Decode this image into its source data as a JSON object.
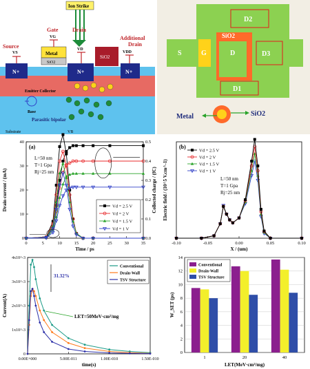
{
  "schematic": {
    "ion_strike": "Ion Strike",
    "gate_label": "Gate",
    "gate_sub": "VG",
    "drain_label": "Drain",
    "drain_sub": "VD",
    "source_label": "Source",
    "source_sub": "VS",
    "additional_drain_label": "Additional",
    "additional_drain_label2": "Drain",
    "additional_drain_sub": "VDD",
    "metal_label": "Metal",
    "sio2_gate_label": "SiO2",
    "sio2_label": "SiO2",
    "nplus_1": "N+",
    "nplus_2": "N+",
    "nplus_3": "N+",
    "emitter_collector": "Emitter Collector",
    "base_label": "Base",
    "parasitic_bipolar": "Parasitic bipolar",
    "substrate_label": "Substrate",
    "vb_label": "VB"
  },
  "layout": {
    "d2": "D2",
    "sio2": "SiO2",
    "s": "S",
    "g": "G",
    "d": "D",
    "d3": "D3",
    "d1": "D1",
    "metal_legend": "Metal",
    "sio2_legend": "SiO2",
    "colors": {
      "green": "#8cd151",
      "orange": "#ff6a2a",
      "yellow": "#ffd21a",
      "red": "#e41b1b"
    }
  },
  "chart_data": [
    {
      "type": "line",
      "panel_label": "(a)",
      "xlabel": "Time / ps",
      "ylabel": "Drain current / (mA)",
      "y2label": "Collected charge / (fC)",
      "xlim": [
        0,
        35
      ],
      "ylim": [
        0,
        40
      ],
      "y2lim": [
        0,
        0.5
      ],
      "xticks": [
        "0",
        "5",
        "10",
        "15",
        "20",
        "25",
        "30",
        "35"
      ],
      "yticks": [
        "0",
        "10",
        "20",
        "30",
        "40"
      ],
      "y2ticks": [
        "0.0",
        "0.1",
        "0.2",
        "0.3",
        "0.4",
        "0.5"
      ],
      "annotations": [
        "L=50 nm",
        "T=1 Gpa",
        "Rj=25 nm"
      ],
      "legend_position": "bottom-right",
      "colors": [
        "#000000",
        "#e8292b",
        "#2aa32a",
        "#3040c8"
      ],
      "series": [
        {
          "name": "Vd = 2.5 V",
          "current": {
            "x": [
              0,
              6,
              8,
              9,
              10,
              11,
              12,
              13,
              14,
              15,
              17,
              20,
              35
            ],
            "y": [
              0,
              0.5,
              7,
              22,
              38,
              43,
              35,
              20,
              8,
              2,
              0,
              0,
              0
            ]
          },
          "charge": {
            "x": [
              0,
              6,
              8,
              9,
              10,
              11,
              12,
              13,
              14,
              15,
              17,
              20,
              25,
              35
            ],
            "y": [
              0,
              0.003,
              0.06,
              0.17,
              0.3,
              0.4,
              0.45,
              0.47,
              0.48,
              0.48,
              0.48,
              0.48,
              0.48,
              0.48
            ]
          }
        },
        {
          "name": "Vd = 2 V",
          "current": {
            "x": [
              0,
              6,
              8,
              9,
              10,
              11,
              12,
              13,
              14,
              15,
              17,
              20,
              35
            ],
            "y": [
              0,
              0.5,
              6,
              18,
              32,
              36,
              30,
              18,
              8,
              2,
              0,
              0,
              0
            ]
          },
          "charge": {
            "x": [
              0,
              6,
              8,
              9,
              10,
              11,
              12,
              13,
              14,
              15,
              17,
              20,
              25,
              35
            ],
            "y": [
              0,
              0.003,
              0.05,
              0.14,
              0.26,
              0.34,
              0.38,
              0.39,
              0.4,
              0.4,
              0.4,
              0.4,
              0.4,
              0.4
            ]
          }
        },
        {
          "name": "Vd = 1.5 V",
          "current": {
            "x": [
              0,
              6,
              8,
              9,
              10,
              11,
              12,
              13,
              14,
              15,
              17,
              20,
              35
            ],
            "y": [
              0,
              0.4,
              5,
              15,
              27,
              31,
              25,
              15,
              7,
              2,
              0,
              0,
              0
            ]
          },
          "charge": {
            "x": [
              0,
              6,
              8,
              9,
              10,
              11,
              12,
              13,
              14,
              15,
              17,
              20,
              25,
              35
            ],
            "y": [
              0,
              0.003,
              0.04,
              0.11,
              0.21,
              0.28,
              0.32,
              0.33,
              0.335,
              0.335,
              0.335,
              0.335,
              0.335,
              0.335
            ]
          }
        },
        {
          "name": "Vd = 1 V",
          "current": {
            "x": [
              0,
              6,
              8,
              9,
              10,
              11,
              12,
              13,
              14,
              15,
              17,
              20,
              35
            ],
            "y": [
              0,
              0.3,
              4,
              12,
              22,
              27,
              22,
              12,
              5,
              1.5,
              0,
              0,
              0
            ]
          },
          "charge": {
            "x": [
              0,
              6,
              8,
              9,
              10,
              11,
              12,
              13,
              14,
              15,
              17,
              20,
              25,
              35
            ],
            "y": [
              0,
              0.002,
              0.03,
              0.09,
              0.17,
              0.22,
              0.25,
              0.26,
              0.265,
              0.265,
              0.265,
              0.265,
              0.265,
              0.265
            ]
          }
        }
      ]
    },
    {
      "type": "line",
      "panel_label": "(b)",
      "xlabel": "X / (um)",
      "ylabel": "Electric field / (10^5 V.cm^-1)",
      "xlim": [
        -0.1,
        0.1
      ],
      "ylim": [
        0,
        2.0
      ],
      "xticks": [
        "-0.10",
        "-0.05",
        "0.00",
        "0.05",
        "0.10"
      ],
      "annotations": [
        "L=50 nm",
        "T=1 Gpa",
        "Rj=25 nm"
      ],
      "legend_position": "top-left",
      "colors": [
        "#000000",
        "#e8292b",
        "#2aa32a",
        "#3040c8"
      ],
      "series": [
        {
          "name": "Vd = 2.5 V",
          "x": [
            -0.1,
            -0.06,
            -0.04,
            -0.03,
            -0.025,
            -0.02,
            -0.015,
            -0.01,
            0,
            0.01,
            0.02,
            0.025,
            0.03,
            0.035,
            0.04,
            0.05,
            0.1
          ],
          "y": [
            0,
            0,
            0.05,
            0.3,
            0.66,
            0.5,
            0.38,
            0.32,
            0.42,
            0.8,
            1.6,
            2.05,
            1.5,
            0.6,
            0.15,
            0,
            0
          ]
        },
        {
          "name": "Vd = 2 V",
          "x": [
            -0.1,
            -0.06,
            -0.04,
            -0.03,
            -0.025,
            -0.02,
            -0.015,
            -0.01,
            0,
            0.01,
            0.02,
            0.025,
            0.03,
            0.035,
            0.04,
            0.05,
            0.1
          ],
          "y": [
            0,
            0,
            0.05,
            0.3,
            0.66,
            0.5,
            0.38,
            0.32,
            0.42,
            0.78,
            1.5,
            1.9,
            1.4,
            0.55,
            0.14,
            0,
            0
          ]
        },
        {
          "name": "Vd = 1.5 V",
          "x": [
            -0.1,
            -0.06,
            -0.04,
            -0.03,
            -0.025,
            -0.02,
            -0.015,
            -0.01,
            0,
            0.01,
            0.02,
            0.025,
            0.03,
            0.035,
            0.04,
            0.05,
            0.1
          ],
          "y": [
            0,
            0,
            0.05,
            0.3,
            0.67,
            0.5,
            0.38,
            0.32,
            0.42,
            0.75,
            1.4,
            1.75,
            1.3,
            0.5,
            0.12,
            0,
            0
          ]
        },
        {
          "name": "Vd = 1 V",
          "x": [
            -0.1,
            -0.06,
            -0.04,
            -0.03,
            -0.025,
            -0.02,
            -0.015,
            -0.01,
            0,
            0.01,
            0.02,
            0.025,
            0.03,
            0.035,
            0.04,
            0.05,
            0.1
          ],
          "y": [
            0,
            0,
            0.05,
            0.3,
            0.68,
            0.5,
            0.38,
            0.32,
            0.42,
            0.72,
            1.3,
            1.6,
            1.2,
            0.45,
            0.1,
            0,
            0
          ]
        }
      ]
    },
    {
      "type": "line",
      "xlabel": "time(s)",
      "ylabel": "Current(A)",
      "xlim": [
        0,
        1.5e-10
      ],
      "ylim": [
        0,
        0.004
      ],
      "xticks": [
        "0.00E+000",
        "5.00E-011",
        "1.00E-010",
        "1.50E-010"
      ],
      "yticks": [
        "0",
        "1x10^-3",
        "2x10^-3",
        "3x10^-3",
        "4x10^-3"
      ],
      "annotations": [
        "31.32%",
        "LET=50MeV·cm²/mg"
      ],
      "legend_position": "top-right",
      "colors": [
        "#1a9a86",
        "#ff7a1a",
        "#2b2fa8"
      ],
      "series": [
        {
          "name": "Conventional",
          "x": [
            0,
            2e-12,
            4e-12,
            6e-12,
            8e-12,
            1e-11,
            1.5e-11,
            2e-11,
            3e-11,
            5e-11,
            7e-11,
            1e-10,
            1.25e-10,
            1.5e-10
          ],
          "y": [
            0,
            0.002,
            0.0037,
            0.0039,
            0.0036,
            0.0031,
            0.0023,
            0.0018,
            0.0012,
            0.00065,
            0.00038,
            0.00018,
            0.0001,
            5e-05
          ]
        },
        {
          "name": "Drain-Wall",
          "x": [
            0,
            2e-12,
            4e-12,
            6e-12,
            8e-12,
            1e-11,
            1.5e-11,
            2e-11,
            3e-11,
            5e-11,
            7e-11,
            1e-10,
            1.25e-10,
            1.5e-10
          ],
          "y": [
            0,
            0.0012,
            0.0024,
            0.0027,
            0.0026,
            0.0024,
            0.0018,
            0.0014,
            0.0009,
            0.00045,
            0.00024,
            0.0001,
            5e-05,
            2e-05
          ]
        },
        {
          "name": "TSV Structure",
          "x": [
            0,
            2e-12,
            4e-12,
            6e-12,
            8e-12,
            1e-11,
            1.5e-11,
            2e-11,
            3e-11,
            5e-11,
            7e-11,
            1e-10,
            1.25e-10,
            1.5e-10
          ],
          "y": [
            0,
            0.0014,
            0.0026,
            0.0027,
            0.0024,
            0.002,
            0.0013,
            0.0009,
            0.0005,
            0.0002,
            0.0001,
            4e-05,
            2e-05,
            1e-05
          ]
        }
      ]
    },
    {
      "type": "bar",
      "xlabel": "LET(MeV·cm²/mg)",
      "ylabel": "W_SET (ps)",
      "categories": [
        "1",
        "20",
        "40"
      ],
      "ylim": [
        0,
        14
      ],
      "yticks": [
        "0",
        "2",
        "4",
        "6",
        "8",
        "10",
        "12",
        "14"
      ],
      "grid": true,
      "legend_position": "top-left",
      "colors": [
        "#8b1f8e",
        "#f3ef2b",
        "#2f4ea8"
      ],
      "series": [
        {
          "name": "Conventional",
          "values": [
            9.5,
            12.7,
            13.7
          ]
        },
        {
          "name": "Drain-Wall",
          "values": [
            9.3,
            12.0,
            12.2
          ]
        },
        {
          "name": "TSV Structure",
          "values": [
            8.0,
            8.5,
            8.8
          ]
        }
      ]
    }
  ]
}
